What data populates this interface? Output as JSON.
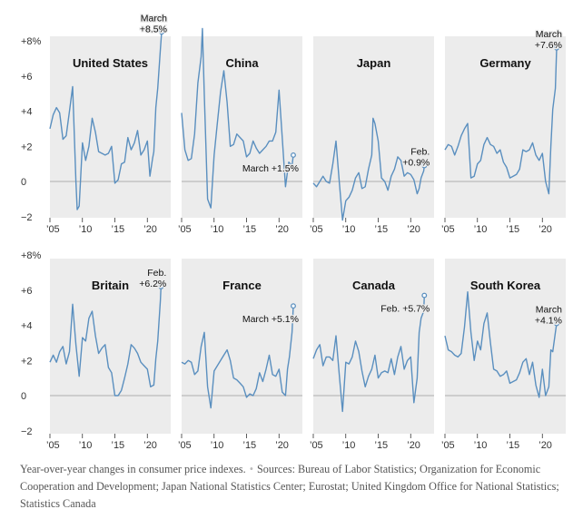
{
  "ticks": {
    "y": [
      {
        "v": 8,
        "label": "+8%"
      },
      {
        "v": 6,
        "label": "+6"
      },
      {
        "v": 4,
        "label": "+4"
      },
      {
        "v": 2,
        "label": "+2"
      },
      {
        "v": 0,
        "label": "0"
      },
      {
        "v": -2,
        "label": "−2"
      }
    ],
    "x": [
      {
        "v": 2005,
        "label": "’05"
      },
      {
        "v": 2010,
        "label": "’10"
      },
      {
        "v": 2015,
        "label": "’15"
      },
      {
        "v": 2020,
        "label": "’20"
      }
    ]
  },
  "chart_data": [
    {
      "type": "line",
      "title": "United States",
      "xlim": [
        2005,
        2022.5
      ],
      "ylim": [
        -2,
        9
      ],
      "annotation": {
        "lines": [
          "March",
          "+8.5%"
        ],
        "x": 2022.2,
        "y": 8.5
      },
      "x": [
        2005,
        2005.5,
        2006,
        2006.5,
        2007,
        2007.5,
        2008,
        2008.5,
        2009,
        2009.2,
        2009.5,
        2010,
        2010.5,
        2011,
        2011.5,
        2012,
        2012.5,
        2013,
        2013.5,
        2014,
        2014.5,
        2015,
        2015.5,
        2016,
        2016.5,
        2017,
        2017.5,
        2018,
        2018.5,
        2019,
        2019.5,
        2020,
        2020.4,
        2020.8,
        2021,
        2021.3,
        2021.6,
        2022,
        2022.2
      ],
      "y": [
        3,
        3.8,
        4.2,
        3.9,
        2.4,
        2.6,
        4,
        5.4,
        0,
        -1.6,
        -1.4,
        2.2,
        1.2,
        2,
        3.6,
        2.8,
        1.7,
        1.6,
        1.5,
        1.6,
        2,
        -0.1,
        0.1,
        1,
        1.1,
        2.5,
        1.8,
        2.2,
        2.9,
        1.5,
        1.8,
        2.3,
        0.3,
        1.3,
        1.7,
        4.2,
        5.3,
        7.5,
        8.5
      ]
    },
    {
      "type": "line",
      "title": "China",
      "xlim": [
        2005,
        2022.5
      ],
      "ylim": [
        -2,
        9
      ],
      "annotation": {
        "lines": [
          "March +1.5%"
        ],
        "x": 2022.2,
        "y": 1.5
      },
      "x": [
        2005,
        2005.5,
        2006,
        2006.5,
        2007,
        2007.5,
        2008,
        2008.2,
        2008.5,
        2009,
        2009.5,
        2010,
        2010.5,
        2011,
        2011.5,
        2012,
        2012.5,
        2013,
        2013.5,
        2014,
        2014.5,
        2015,
        2015.5,
        2016,
        2016.5,
        2017,
        2017.5,
        2018,
        2018.5,
        2019,
        2019.5,
        2020,
        2020.5,
        2021,
        2021.5,
        2022,
        2022.2
      ],
      "y": [
        3.9,
        1.8,
        1.2,
        1.3,
        2.7,
        5.6,
        7.1,
        8.7,
        4.9,
        -1,
        -1.5,
        1.5,
        3.3,
        5.1,
        6.3,
        4.5,
        2,
        2.1,
        2.7,
        2.5,
        2.3,
        1.4,
        1.6,
        2.3,
        1.9,
        1.6,
        1.8,
        2,
        2.3,
        2.3,
        2.8,
        5.2,
        2.5,
        -0.3,
        1.1,
        0.9,
        1.5
      ]
    },
    {
      "type": "line",
      "title": "Japan",
      "xlim": [
        2005,
        2022.5
      ],
      "ylim": [
        -2,
        9
      ],
      "annotation": {
        "lines": [
          "Feb.",
          "+0.9%"
        ],
        "x": 2022.1,
        "y": 0.9
      },
      "x": [
        2005,
        2005.5,
        2006,
        2006.5,
        2007,
        2007.5,
        2008,
        2008.5,
        2009,
        2009.5,
        2010,
        2010.5,
        2011,
        2011.5,
        2012,
        2012.5,
        2013,
        2013.5,
        2014,
        2014.2,
        2014.5,
        2015,
        2015.5,
        2016,
        2016.5,
        2017,
        2017.5,
        2018,
        2018.5,
        2019,
        2019.5,
        2020,
        2020.5,
        2021,
        2021.3,
        2021.6,
        2022,
        2022.1
      ],
      "y": [
        -0.1,
        -0.3,
        0,
        0.3,
        0,
        -0.1,
        1,
        2.3,
        0,
        -2.2,
        -1.1,
        -0.9,
        -0.5,
        0.2,
        0.5,
        -0.4,
        -0.3,
        0.7,
        1.5,
        3.6,
        3.3,
        2.3,
        0.2,
        0,
        -0.5,
        0.3,
        0.7,
        1.4,
        1.2,
        0.3,
        0.5,
        0.4,
        0.1,
        -0.7,
        -0.4,
        0.2,
        0.6,
        0.9
      ]
    },
    {
      "type": "line",
      "title": "Germany",
      "xlim": [
        2005,
        2022.5
      ],
      "ylim": [
        -2,
        9
      ],
      "annotation": {
        "lines": [
          "March",
          "+7.6%"
        ],
        "x": 2022.2,
        "y": 7.6
      },
      "x": [
        2005,
        2005.5,
        2006,
        2006.5,
        2007,
        2007.5,
        2008,
        2008.5,
        2009,
        2009.5,
        2010,
        2010.5,
        2011,
        2011.5,
        2012,
        2012.5,
        2013,
        2013.5,
        2014,
        2014.5,
        2015,
        2015.5,
        2016,
        2016.5,
        2017,
        2017.5,
        2018,
        2018.5,
        2019,
        2019.5,
        2020,
        2020.5,
        2021,
        2021.3,
        2021.6,
        2022,
        2022.2
      ],
      "y": [
        1.8,
        2.1,
        2,
        1.5,
        2,
        2.6,
        3,
        3.3,
        0.2,
        0.3,
        1,
        1.2,
        2.1,
        2.5,
        2.1,
        2,
        1.6,
        1.8,
        1.1,
        0.8,
        0.2,
        0.3,
        0.4,
        0.7,
        1.8,
        1.7,
        1.8,
        2.2,
        1.5,
        1.2,
        1.6,
        0,
        -0.7,
        2,
        4.1,
        5.3,
        7.6
      ]
    },
    {
      "type": "line",
      "title": "Britain",
      "xlim": [
        2005,
        2022.5
      ],
      "ylim": [
        -2,
        9
      ],
      "annotation": {
        "lines": [
          "Feb.",
          "+6.2%"
        ],
        "x": 2022.1,
        "y": 6.2
      },
      "x": [
        2005,
        2005.5,
        2006,
        2006.5,
        2007,
        2007.5,
        2008,
        2008.5,
        2009,
        2009.5,
        2010,
        2010.5,
        2011,
        2011.5,
        2012,
        2012.5,
        2013,
        2013.5,
        2014,
        2014.5,
        2015,
        2015.5,
        2016,
        2016.5,
        2017,
        2017.5,
        2018,
        2018.5,
        2019,
        2019.5,
        2020,
        2020.5,
        2021,
        2021.3,
        2021.6,
        2022,
        2022.1
      ],
      "y": [
        1.9,
        2.3,
        1.9,
        2.5,
        2.8,
        1.8,
        2.5,
        5.2,
        2.9,
        1.1,
        3.3,
        3.1,
        4.4,
        4.8,
        3.4,
        2.4,
        2.7,
        2.9,
        1.6,
        1.3,
        0,
        0,
        0.3,
        1,
        1.8,
        2.9,
        2.7,
        2.4,
        1.9,
        1.7,
        1.5,
        0.5,
        0.6,
        2.1,
        3.1,
        5.4,
        6.2
      ]
    },
    {
      "type": "line",
      "title": "France",
      "xlim": [
        2005,
        2022.5
      ],
      "ylim": [
        -2,
        9
      ],
      "annotation": {
        "lines": [
          "March +5.1%"
        ],
        "x": 2022.2,
        "y": 5.1
      },
      "x": [
        2005,
        2005.5,
        2006,
        2006.5,
        2007,
        2007.5,
        2008,
        2008.5,
        2009,
        2009.5,
        2010,
        2010.5,
        2011,
        2011.5,
        2012,
        2012.5,
        2013,
        2013.5,
        2014,
        2014.5,
        2015,
        2015.5,
        2016,
        2016.5,
        2017,
        2017.5,
        2018,
        2018.5,
        2019,
        2019.5,
        2020,
        2020.5,
        2021,
        2021.3,
        2021.6,
        2022,
        2022.2
      ],
      "y": [
        1.9,
        1.8,
        2,
        1.9,
        1.2,
        1.4,
        2.8,
        3.6,
        0.5,
        -0.7,
        1.4,
        1.7,
        2,
        2.3,
        2.6,
        2,
        1,
        0.9,
        0.7,
        0.5,
        -0.1,
        0.1,
        0,
        0.4,
        1.3,
        0.8,
        1.5,
        2.3,
        1.2,
        1.1,
        1.5,
        0.2,
        0,
        1.5,
        2.2,
        3.6,
        5.1
      ]
    },
    {
      "type": "line",
      "title": "Canada",
      "xlim": [
        2005,
        2022.5
      ],
      "ylim": [
        -2,
        9
      ],
      "annotation": {
        "lines": [
          "Feb. +5.7%"
        ],
        "x": 2022.1,
        "y": 5.7
      },
      "x": [
        2005,
        2005.5,
        2006,
        2006.5,
        2007,
        2007.5,
        2008,
        2008.5,
        2009,
        2009.5,
        2010,
        2010.5,
        2011,
        2011.5,
        2012,
        2012.5,
        2013,
        2013.5,
        2014,
        2014.5,
        2015,
        2015.5,
        2016,
        2016.5,
        2017,
        2017.5,
        2018,
        2018.5,
        2019,
        2019.5,
        2020,
        2020.5,
        2021,
        2021.3,
        2021.6,
        2022,
        2022.1
      ],
      "y": [
        2.1,
        2.6,
        2.9,
        1.7,
        2.2,
        2.2,
        2,
        3.4,
        1.2,
        -0.9,
        1.9,
        1.8,
        2.2,
        3.1,
        2.5,
        1.4,
        0.5,
        1.1,
        1.5,
        2.3,
        1,
        1.3,
        1.4,
        1.3,
        2.1,
        1.2,
        2.2,
        2.8,
        1.5,
        2,
        2.2,
        -0.4,
        1,
        3.6,
        4.4,
        4.8,
        5.7
      ]
    },
    {
      "type": "line",
      "title": "South Korea",
      "xlim": [
        2005,
        2022.5
      ],
      "ylim": [
        -2,
        9
      ],
      "annotation": {
        "lines": [
          "March",
          "+4.1%"
        ],
        "x": 2022.2,
        "y": 4.1
      },
      "x": [
        2005,
        2005.5,
        2006,
        2006.5,
        2007,
        2007.5,
        2008,
        2008.5,
        2009,
        2009.5,
        2010,
        2010.5,
        2011,
        2011.5,
        2012,
        2012.5,
        2013,
        2013.5,
        2014,
        2014.5,
        2015,
        2015.5,
        2016,
        2016.5,
        2017,
        2017.5,
        2018,
        2018.5,
        2019,
        2019.5,
        2020,
        2020.5,
        2021,
        2021.3,
        2021.6,
        2022,
        2022.2
      ],
      "y": [
        3.4,
        2.6,
        2.5,
        2.3,
        2.2,
        2.4,
        3.9,
        5.9,
        3.6,
        2,
        3.1,
        2.6,
        4.1,
        4.7,
        3,
        1.5,
        1.4,
        1.1,
        1.2,
        1.4,
        0.7,
        0.8,
        0.9,
        1.3,
        1.9,
        2.1,
        1.2,
        1.9,
        0.6,
        -0.1,
        1.5,
        0,
        0.5,
        2.6,
        2.5,
        3.6,
        4.1
      ]
    }
  ],
  "colors": {
    "panel": "#ececec",
    "line": "#5a8fbf",
    "zero": "#9a9a9a",
    "text": "#111111",
    "axis": "#333333"
  },
  "note": {
    "text": "Year-over-year changes in consumer price indexes.",
    "sep": "•",
    "sources": "Sources: Bureau of Labor Statistics; Organization for Economic Cooperation and Development; Japan National Statistics Center; Eurostat; United Kingdom Office for National Statistics; Statistics Canada"
  }
}
